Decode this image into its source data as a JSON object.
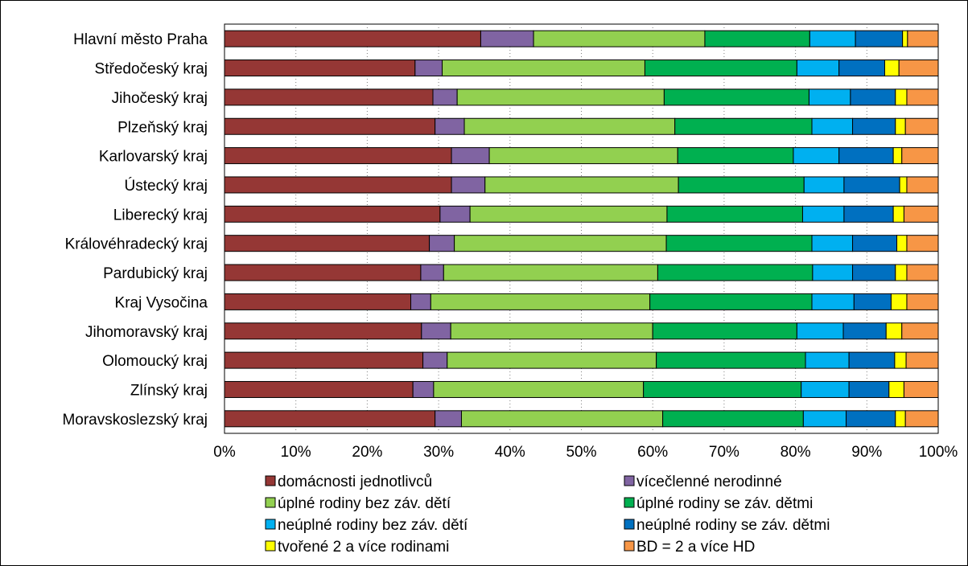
{
  "chart_data": {
    "type": "bar",
    "orientation": "horizontal",
    "stacked": true,
    "percent_stacked": true,
    "categories": [
      "Hlavní město Praha",
      "Středočeský kraj",
      "Jihočeský kraj",
      "Plzeňský kraj",
      "Karlovarský kraj",
      "Ústecký kraj",
      "Liberecký kraj",
      "Královéhradecký kraj",
      "Pardubický kraj",
      "Kraj Vysočina",
      "Jihomoravský kraj",
      "Olomoucký kraj",
      "Zlínský kraj",
      "Moravskoslezský kraj"
    ],
    "series": [
      {
        "name": "domácnosti jednotlivců",
        "color": "#953735",
        "values": [
          35.9,
          26.7,
          29.2,
          29.5,
          31.8,
          31.8,
          30.2,
          28.7,
          27.5,
          26.1,
          27.6,
          27.8,
          26.4,
          29.5
        ]
      },
      {
        "name": "vícečlenné nerodinné",
        "color": "#8064a2",
        "values": [
          7.4,
          3.8,
          3.4,
          4.1,
          5.3,
          4.7,
          4.2,
          3.5,
          3.2,
          2.8,
          4.1,
          3.4,
          2.9,
          3.7
        ]
      },
      {
        "name": "úplné rodiny bez záv. dětí",
        "color": "#92d050",
        "values": [
          24.0,
          28.4,
          29.0,
          29.5,
          26.4,
          27.1,
          27.6,
          29.7,
          30.0,
          30.7,
          28.3,
          29.3,
          29.4,
          28.2
        ]
      },
      {
        "name": "úplné rodiny se záv. dětmi",
        "color": "#00b050",
        "values": [
          14.7,
          21.3,
          20.3,
          19.2,
          16.2,
          17.6,
          19.0,
          20.4,
          21.7,
          22.7,
          20.2,
          20.9,
          22.1,
          19.7
        ]
      },
      {
        "name": "neúplné rodiny bez záv. dětí",
        "color": "#00b0f0",
        "values": [
          6.4,
          5.9,
          5.8,
          5.7,
          6.4,
          5.6,
          5.8,
          5.7,
          5.6,
          5.9,
          6.5,
          6.1,
          6.7,
          6.0
        ]
      },
      {
        "name": "neúplné rodiny se záv. dětmi",
        "color": "#0070c0",
        "values": [
          6.6,
          6.4,
          6.3,
          6.0,
          7.6,
          7.8,
          6.9,
          6.2,
          6.0,
          5.2,
          6.0,
          6.4,
          5.6,
          6.9
        ]
      },
      {
        "name": "tvořené 2 a více rodinami",
        "color": "#ffff00",
        "values": [
          0.7,
          2.0,
          1.6,
          1.4,
          1.2,
          1.0,
          1.5,
          1.4,
          1.6,
          2.2,
          2.2,
          1.6,
          2.1,
          1.4
        ]
      },
      {
        "name": "BD = 2 a více HD",
        "color": "#f79646",
        "values": [
          4.3,
          5.5,
          4.4,
          4.6,
          5.1,
          4.4,
          4.8,
          4.4,
          4.4,
          4.4,
          5.1,
          4.5,
          4.8,
          4.6
        ]
      }
    ],
    "xlim": [
      0,
      100
    ],
    "x_ticks": [
      "0%",
      "10%",
      "20%",
      "30%",
      "40%",
      "50%",
      "60%",
      "70%",
      "80%",
      "90%",
      "100%"
    ],
    "grid": "vertical dotted",
    "legend_position": "bottom",
    "title": "",
    "xlabel": "",
    "ylabel": ""
  }
}
